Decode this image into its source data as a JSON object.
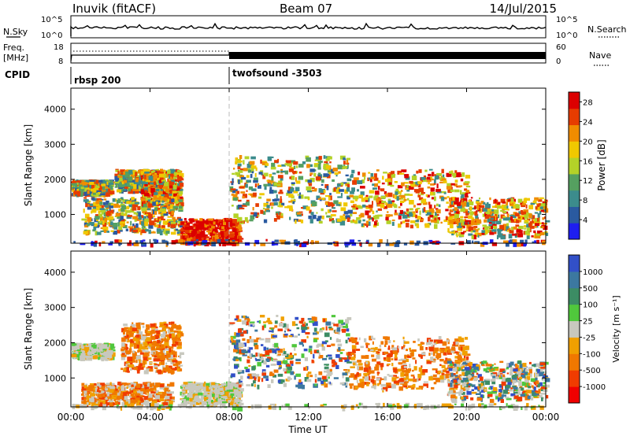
{
  "header": {
    "station": "Inuvik (fitACF)",
    "beam": "Beam 07",
    "date": "14/Jul/2015"
  },
  "top_panel": {
    "nsky_label": "N.Sky",
    "nsearch_label": "N.Search",
    "nsky_ticks": [
      "10^5",
      "10^0"
    ],
    "nsearch_ticks": [
      "10^5",
      "10^0"
    ],
    "freq_label_1": "Freq.",
    "freq_label_2": "[MHz]",
    "freq_ticks": [
      "18",
      "8"
    ],
    "nave_label": "Nave",
    "nave_ticks": [
      "60",
      "0"
    ],
    "cpid_label": "CPID",
    "cpid_segments": [
      {
        "name": "rbsp 200",
        "start_hour": 0,
        "end_hour": 8
      },
      {
        "name": "twofsound -3503",
        "start_hour": 8,
        "end_hour": 24
      }
    ]
  },
  "colors": {
    "power": [
      "#1e1ef0",
      "#2a5aa0",
      "#3c8c8c",
      "#55a060",
      "#b4d228",
      "#f0c800",
      "#f08c00",
      "#e63c00",
      "#dc0000"
    ],
    "velocity": [
      "#3250c8",
      "#3c78a0",
      "#3c8c64",
      "#50c83c",
      "#c8c8be",
      "#f0a000",
      "#f07800",
      "#f03c00",
      "#f00000"
    ]
  },
  "chart_data": [
    {
      "type": "heatmap",
      "name": "Power",
      "xlabel": "",
      "ylabel": "Slant Range [km]",
      "x_range_hours": [
        0,
        24
      ],
      "ylim": [
        180,
        4600
      ],
      "xticks": [
        "00:00",
        "04:00",
        "08:00",
        "12:00",
        "16:00",
        "20:00",
        "00:00"
      ],
      "yticks": [
        "1000",
        "2000",
        "3000",
        "4000"
      ],
      "colorbar_label": "Power [dB]",
      "colorbar_ticks": [
        "4",
        "8",
        "12",
        "16",
        "20",
        "24",
        "28"
      ],
      "colorbar_range": [
        0,
        30
      ],
      "regions": [
        {
          "t0": 0.0,
          "t1": 2.0,
          "r0": 1600,
          "r1": 2000,
          "level": "mixed"
        },
        {
          "t0": 2.2,
          "t1": 4.5,
          "r0": 1700,
          "r1": 2300,
          "level": "mixed"
        },
        {
          "t0": 3.5,
          "t1": 5.5,
          "r0": 1300,
          "r1": 2300,
          "level": "strong"
        },
        {
          "t0": 0.5,
          "t1": 5.5,
          "r0": 500,
          "r1": 1500,
          "level": "mixed"
        },
        {
          "t0": 5.5,
          "t1": 8.5,
          "r0": 200,
          "r1": 900,
          "level": "very_strong"
        },
        {
          "t0": 8.0,
          "t1": 14.0,
          "r0": 800,
          "r1": 2700,
          "level": "mixed"
        },
        {
          "t0": 14.0,
          "t1": 20.0,
          "r0": 700,
          "r1": 2300,
          "level": "strong"
        },
        {
          "t0": 19.0,
          "t1": 24.0,
          "r0": 400,
          "r1": 1500,
          "level": "strong"
        },
        {
          "t0": 0.0,
          "t1": 24.0,
          "r0": 180,
          "r1": 300,
          "level": "ground"
        }
      ]
    },
    {
      "type": "heatmap",
      "name": "Velocity",
      "xlabel": "Time UT",
      "ylabel": "Slant Range [km]",
      "x_range_hours": [
        0,
        24
      ],
      "ylim": [
        180,
        4600
      ],
      "xticks": [
        "00:00",
        "04:00",
        "08:00",
        "12:00",
        "16:00",
        "20:00",
        "00:00"
      ],
      "yticks": [
        "1000",
        "2000",
        "3000",
        "4000"
      ],
      "colorbar_label": "Velocity [m s⁻¹]",
      "colorbar_ticks": [
        "1000",
        "500",
        "100",
        "25",
        "-25",
        "-100",
        "-500",
        "-1000"
      ],
      "regions": [
        {
          "t0": 0.0,
          "t1": 2.0,
          "r0": 1600,
          "r1": 2000,
          "level": "near_zero"
        },
        {
          "t0": 2.5,
          "t1": 5.5,
          "r0": 1200,
          "r1": 2600,
          "level": "away"
        },
        {
          "t0": 0.5,
          "t1": 5.0,
          "r0": 300,
          "r1": 900,
          "level": "away"
        },
        {
          "t0": 5.5,
          "t1": 8.5,
          "r0": 300,
          "r1": 900,
          "level": "near_zero"
        },
        {
          "t0": 8.0,
          "t1": 14.0,
          "r0": 800,
          "r1": 2800,
          "level": "mixed"
        },
        {
          "t0": 14.0,
          "t1": 20.0,
          "r0": 700,
          "r1": 2200,
          "level": "away"
        },
        {
          "t0": 19.0,
          "t1": 24.0,
          "r0": 400,
          "r1": 1500,
          "level": "mixed"
        },
        {
          "t0": 0.0,
          "t1": 24.0,
          "r0": 180,
          "r1": 300,
          "level": "near_zero"
        }
      ]
    }
  ]
}
